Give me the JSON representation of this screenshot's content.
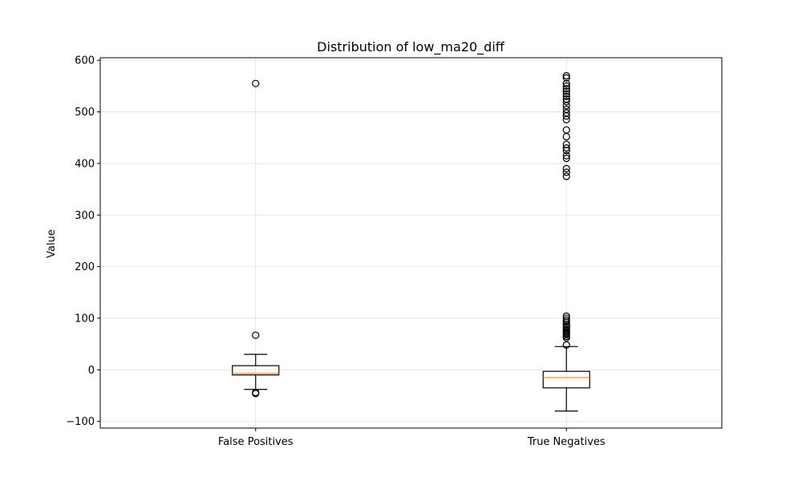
{
  "chart_data": {
    "type": "boxplot",
    "title": "Distribution of low_ma20_diff",
    "xlabel": "",
    "ylabel": "Value",
    "ylim": [
      -113,
      605
    ],
    "yticks": [
      -100,
      0,
      100,
      200,
      300,
      400,
      500,
      600
    ],
    "grid": true,
    "categories": [
      "False Positives",
      "True Negatives"
    ],
    "series": [
      {
        "category": "False Positives",
        "whisker_low": -38,
        "q1": -10,
        "median": -7,
        "q3": 8,
        "whisker_high": 30,
        "fliers": [
          555,
          67,
          -44,
          -46
        ]
      },
      {
        "category": "True Negatives",
        "whisker_low": -80,
        "q1": -35,
        "median": -15,
        "q3": -3,
        "whisker_high": 45,
        "fliers": [
          570,
          566,
          555,
          550,
          545,
          540,
          535,
          530,
          525,
          520,
          512,
          505,
          498,
          492,
          485,
          465,
          452,
          437,
          430,
          425,
          415,
          410,
          390,
          383,
          375,
          104,
          100,
          96,
          92,
          88,
          85,
          82,
          78,
          75,
          72,
          70,
          68,
          65,
          62,
          48
        ]
      }
    ]
  }
}
